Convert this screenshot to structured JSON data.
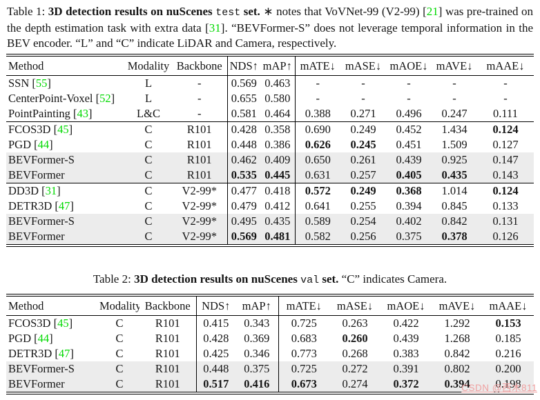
{
  "colors": {
    "citation_green": "#00d900",
    "highlight_row": "#ececec",
    "watermark_pink": "#efa0a0",
    "rule": "#000000"
  },
  "caption1": {
    "segments": [
      {
        "t": "Table 1: ",
        "s": "plain"
      },
      {
        "t": "3D detection results on nuScenes ",
        "s": "bold"
      },
      {
        "t": "test",
        "s": "mono"
      },
      {
        "t": " set.",
        "s": "bold"
      },
      {
        "t": " ∗ notes that VoVNet-99 (V2-99) [",
        "s": "plain"
      },
      {
        "t": "21",
        "s": "cite"
      },
      {
        "t": "] was pre-trained on the depth estimation task with extra data [",
        "s": "plain"
      },
      {
        "t": "31",
        "s": "cite"
      },
      {
        "t": "]. “BEVFormer-S” does not leverage temporal information in the BEV encoder. “L” and “C” indicate LiDAR and Camera, respectively.",
        "s": "plain"
      }
    ]
  },
  "caption2": {
    "segments": [
      {
        "t": "Table 2: ",
        "s": "plain"
      },
      {
        "t": "3D detection results on nuScenes ",
        "s": "bold"
      },
      {
        "t": "val",
        "s": "mono"
      },
      {
        "t": " set.",
        "s": "bold"
      },
      {
        "t": " “C” indicates Camera.",
        "s": "plain"
      }
    ]
  },
  "headers": [
    "Method",
    "Modality",
    "Backbone",
    "NDS↑",
    "mAP↑",
    "mATE↓",
    "mASE↓",
    "mAOE↓",
    "mAVE↓",
    "mAAE↓"
  ],
  "table1": {
    "groups": [
      {
        "rows": [
          {
            "method": "SSN",
            "cite": "55",
            "modality": "L",
            "backbone": "-",
            "values": [
              "0.569",
              "0.463",
              "-",
              "-",
              "-",
              "-",
              "-"
            ],
            "bold": [
              0,
              0,
              0,
              0,
              0,
              0,
              0
            ],
            "highlight": false
          },
          {
            "method": "CenterPoint-Voxel",
            "cite": "52",
            "modality": "L",
            "backbone": "-",
            "values": [
              "0.655",
              "0.580",
              "-",
              "-",
              "-",
              "-",
              "-"
            ],
            "bold": [
              0,
              0,
              0,
              0,
              0,
              0,
              0
            ],
            "highlight": false
          },
          {
            "method": "PointPainting",
            "cite": "43",
            "modality": "L&C",
            "backbone": "-",
            "values": [
              "0.581",
              "0.464",
              "0.388",
              "0.271",
              "0.496",
              "0.247",
              "0.111"
            ],
            "bold": [
              0,
              0,
              0,
              0,
              0,
              0,
              0
            ],
            "highlight": false
          }
        ]
      },
      {
        "rows": [
          {
            "method": "FCOS3D",
            "cite": "45",
            "modality": "C",
            "backbone": "R101",
            "values": [
              "0.428",
              "0.358",
              "0.690",
              "0.249",
              "0.452",
              "1.434",
              "0.124"
            ],
            "bold": [
              0,
              0,
              0,
              0,
              0,
              0,
              1
            ],
            "highlight": false
          },
          {
            "method": "PGD",
            "cite": "44",
            "modality": "C",
            "backbone": "R101",
            "values": [
              "0.448",
              "0.386",
              "0.626",
              "0.245",
              "0.451",
              "1.509",
              "0.127"
            ],
            "bold": [
              0,
              0,
              1,
              1,
              0,
              0,
              0
            ],
            "highlight": false
          },
          {
            "method": "BEVFormer-S",
            "cite": null,
            "modality": "C",
            "backbone": "R101",
            "values": [
              "0.462",
              "0.409",
              "0.650",
              "0.261",
              "0.439",
              "0.925",
              "0.147"
            ],
            "bold": [
              0,
              0,
              0,
              0,
              0,
              0,
              0
            ],
            "highlight": true
          },
          {
            "method": "BEVFormer",
            "cite": null,
            "modality": "C",
            "backbone": "R101",
            "values": [
              "0.535",
              "0.445",
              "0.631",
              "0.257",
              "0.405",
              "0.435",
              "0.143"
            ],
            "bold": [
              1,
              1,
              0,
              0,
              1,
              1,
              0
            ],
            "highlight": true
          }
        ]
      },
      {
        "rows": [
          {
            "method": "DD3D",
            "cite": "31",
            "modality": "C",
            "backbone": "V2-99*",
            "values": [
              "0.477",
              "0.418",
              "0.572",
              "0.249",
              "0.368",
              "1.014",
              "0.124"
            ],
            "bold": [
              0,
              0,
              1,
              1,
              1,
              0,
              1
            ],
            "highlight": false
          },
          {
            "method": "DETR3D",
            "cite": "47",
            "modality": "C",
            "backbone": "V2-99*",
            "values": [
              "0.479",
              "0.412",
              "0.641",
              "0.255",
              "0.394",
              "0.845",
              "0.133"
            ],
            "bold": [
              0,
              0,
              0,
              0,
              0,
              0,
              0
            ],
            "highlight": false
          },
          {
            "method": "BEVFormer-S",
            "cite": null,
            "modality": "C",
            "backbone": "V2-99*",
            "values": [
              "0.495",
              "0.435",
              "0.589",
              "0.254",
              "0.402",
              "0.842",
              "0.131"
            ],
            "bold": [
              0,
              0,
              0,
              0,
              0,
              0,
              0
            ],
            "highlight": true
          },
          {
            "method": "BEVFormer",
            "cite": null,
            "modality": "C",
            "backbone": "V2-99*",
            "values": [
              "0.569",
              "0.481",
              "0.582",
              "0.256",
              "0.375",
              "0.378",
              "0.126"
            ],
            "bold": [
              1,
              1,
              0,
              0,
              0,
              1,
              0
            ],
            "highlight": true
          }
        ]
      }
    ]
  },
  "table2": {
    "groups": [
      {
        "rows": [
          {
            "method": "FCOS3D",
            "cite": "45",
            "modality": "C",
            "backbone": "R101",
            "values": [
              "0.415",
              "0.343",
              "0.725",
              "0.263",
              "0.422",
              "1.292",
              "0.153"
            ],
            "bold": [
              0,
              0,
              0,
              0,
              0,
              0,
              1
            ],
            "highlight": false
          },
          {
            "method": "PGD",
            "cite": "44",
            "modality": "C",
            "backbone": "R101",
            "values": [
              "0.428",
              "0.369",
              "0.683",
              "0.260",
              "0.439",
              "1.268",
              "0.185"
            ],
            "bold": [
              0,
              0,
              0,
              1,
              0,
              0,
              0
            ],
            "highlight": false
          },
          {
            "method": "DETR3D",
            "cite": "47",
            "modality": "C",
            "backbone": "R101",
            "values": [
              "0.425",
              "0.346",
              "0.773",
              "0.268",
              "0.383",
              "0.842",
              "0.216"
            ],
            "bold": [
              0,
              0,
              0,
              0,
              0,
              0,
              0
            ],
            "highlight": false
          },
          {
            "method": "BEVFormer-S",
            "cite": null,
            "modality": "C",
            "backbone": "R101",
            "values": [
              "0.448",
              "0.375",
              "0.725",
              "0.272",
              "0.391",
              "0.802",
              "0.200"
            ],
            "bold": [
              0,
              0,
              0,
              0,
              0,
              0,
              0
            ],
            "highlight": true
          },
          {
            "method": "BEVFormer",
            "cite": null,
            "modality": "C",
            "backbone": "R101",
            "values": [
              "0.517",
              "0.416",
              "0.673",
              "0.274",
              "0.372",
              "0.394",
              "0.198"
            ],
            "bold": [
              1,
              1,
              1,
              0,
              1,
              1,
              0
            ],
            "highlight": true
          }
        ]
      }
    ]
  },
  "watermark": "CSDN @西木811"
}
